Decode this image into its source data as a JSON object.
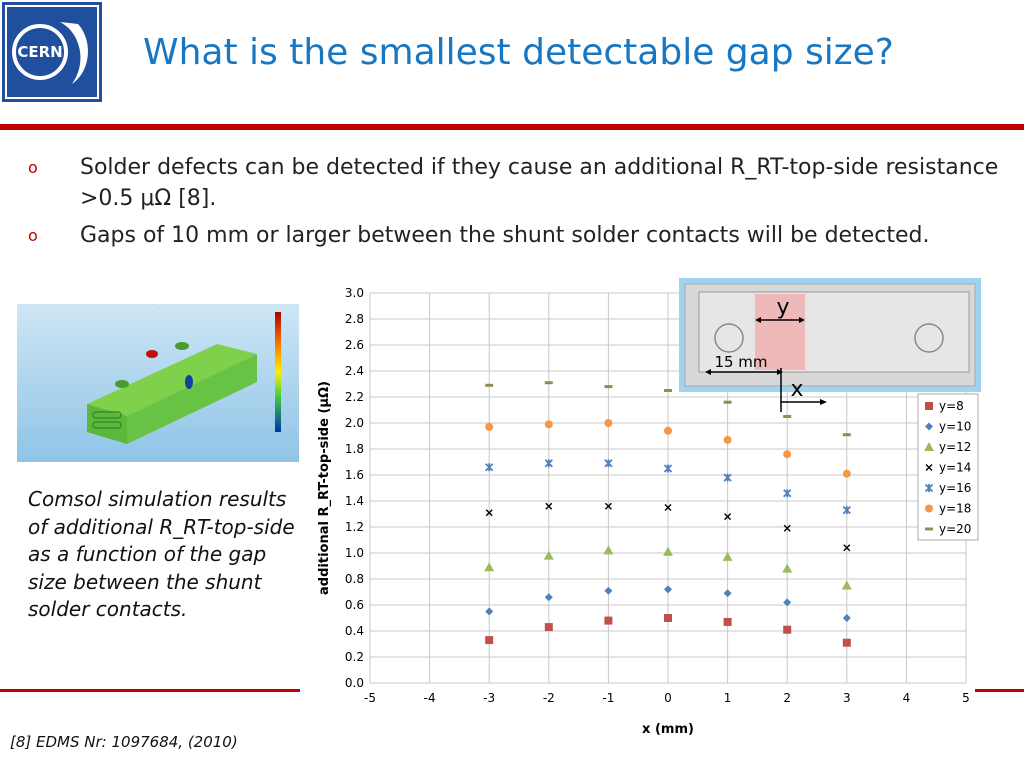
{
  "slide": {
    "title": "What is the smallest detectable gap size?",
    "bullets": [
      "Solder defects can be detected if they cause an additional R_RT-top-side resistance >0.5 μΩ [8].",
      "Gaps of 10 mm or larger between the shunt solder contacts will be detected."
    ],
    "bullet_marker": "o",
    "caption": "Comsol simulation results of additional R_RT-top-side as a function of the gap size between the shunt solder contacts.",
    "reference": "[8] EDMS Nr: 1097684, (2010)",
    "logo_text": "CERN"
  },
  "diagram": {
    "y_label": "y",
    "x_label": "x",
    "dim_label": "15 mm"
  },
  "colors": {
    "title": "#1877c2",
    "accent_red": "#c00000"
  },
  "chart_data": {
    "type": "scatter",
    "title": "",
    "xlabel": "x (mm)",
    "ylabel": "additional R_RT-top-side (μΩ)",
    "xlim": [
      -5,
      5
    ],
    "ylim": [
      0,
      3.0
    ],
    "xticks": [
      "-5",
      "-4",
      "-3",
      "-2",
      "-1",
      "0",
      "1",
      "2",
      "3",
      "4",
      "5"
    ],
    "yticks": [
      "0.0",
      "0.2",
      "0.4",
      "0.6",
      "0.8",
      "1.0",
      "1.2",
      "1.4",
      "1.6",
      "1.8",
      "2.0",
      "2.2",
      "2.4",
      "2.6",
      "2.8",
      "3.0"
    ],
    "grid": true,
    "legend_position": "right",
    "x": [
      -3,
      -2,
      -1,
      0,
      1,
      2,
      3
    ],
    "series": [
      {
        "name": "y=8",
        "marker": "square",
        "color": "#c0504d",
        "values": [
          0.33,
          0.43,
          0.48,
          0.5,
          0.47,
          0.41,
          0.31
        ]
      },
      {
        "name": "y=10",
        "marker": "diamond",
        "color": "#4f81bd",
        "values": [
          0.55,
          0.66,
          0.71,
          0.72,
          0.69,
          0.62,
          0.5
        ]
      },
      {
        "name": "y=12",
        "marker": "triangle",
        "color": "#9bbb59",
        "values": [
          0.89,
          0.98,
          1.02,
          1.01,
          0.97,
          0.88,
          0.75
        ]
      },
      {
        "name": "y=14",
        "marker": "x",
        "color": "#000000",
        "values": [
          1.31,
          1.36,
          1.36,
          1.35,
          1.28,
          1.19,
          1.04
        ]
      },
      {
        "name": "y=16",
        "marker": "star",
        "color": "#4f81bd",
        "values": [
          1.66,
          1.69,
          1.69,
          1.65,
          1.58,
          1.46,
          1.33
        ]
      },
      {
        "name": "y=18",
        "marker": "circle",
        "color": "#f79646",
        "values": [
          1.97,
          1.99,
          2.0,
          1.94,
          1.87,
          1.76,
          1.61
        ]
      },
      {
        "name": "y=20",
        "marker": "dash",
        "color": "#948a54",
        "values": [
          2.29,
          2.31,
          2.28,
          2.25,
          2.16,
          2.05,
          1.91
        ]
      }
    ]
  }
}
